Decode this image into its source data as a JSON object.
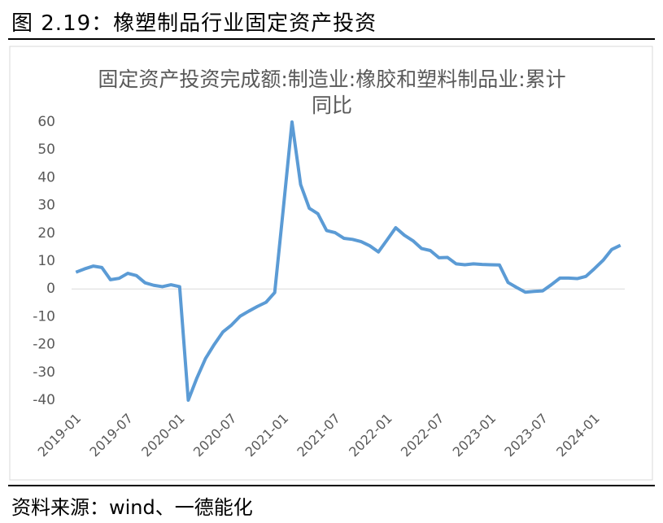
{
  "header": {
    "title": "图 2.19：橡塑制品行业固定资产投资"
  },
  "footer": {
    "source": "资料来源：wind、一德能化"
  },
  "chart_data": {
    "type": "line",
    "title": "固定资产投资完成额:制造业:橡胶和塑料制品业:累计同比",
    "categories": [
      "2019-01",
      null,
      null,
      null,
      null,
      null,
      "2019-07",
      null,
      null,
      null,
      null,
      null,
      "2020-01",
      null,
      null,
      null,
      null,
      null,
      "2020-07",
      null,
      null,
      null,
      null,
      null,
      "2021-01",
      null,
      null,
      null,
      null,
      null,
      "2021-07",
      null,
      null,
      null,
      null,
      null,
      "2022-01",
      null,
      null,
      null,
      null,
      null,
      "2022-07",
      null,
      null,
      null,
      null,
      null,
      "2023-01",
      null,
      null,
      null,
      null,
      null,
      "2023-07",
      null,
      null,
      null,
      null,
      null,
      "2024-01",
      null,
      null,
      null
    ],
    "values": [
      6,
      7.2,
      8.2,
      7.7,
      3.3,
      3.8,
      5.6,
      4.8,
      2.2,
      1.3,
      0.8,
      1.5,
      0.8,
      -40,
      -32,
      -25,
      -20,
      -15.5,
      -13,
      -9.8,
      -8,
      -6.3,
      -4.8,
      -1.3,
      29,
      60,
      37.5,
      29,
      27,
      21,
      20.2,
      18.2,
      17.8,
      17,
      15.5,
      13.3,
      17.6,
      22,
      19.3,
      17.3,
      14.5,
      13.8,
      11.2,
      11.3,
      9,
      8.7,
      9,
      8.8,
      8.7,
      8.6,
      2.3,
      0.5,
      -1.2,
      -0.9,
      -0.7,
      1.5,
      3.9,
      3.9,
      3.7,
      4.5,
      7.3,
      10.3,
      14.2,
      15.7
    ],
    "color": "#5b9bd5",
    "ylim": [
      -40,
      60
    ],
    "yticks": [
      -40,
      -30,
      -20,
      -10,
      0,
      10,
      20,
      30,
      40,
      50,
      60
    ]
  }
}
